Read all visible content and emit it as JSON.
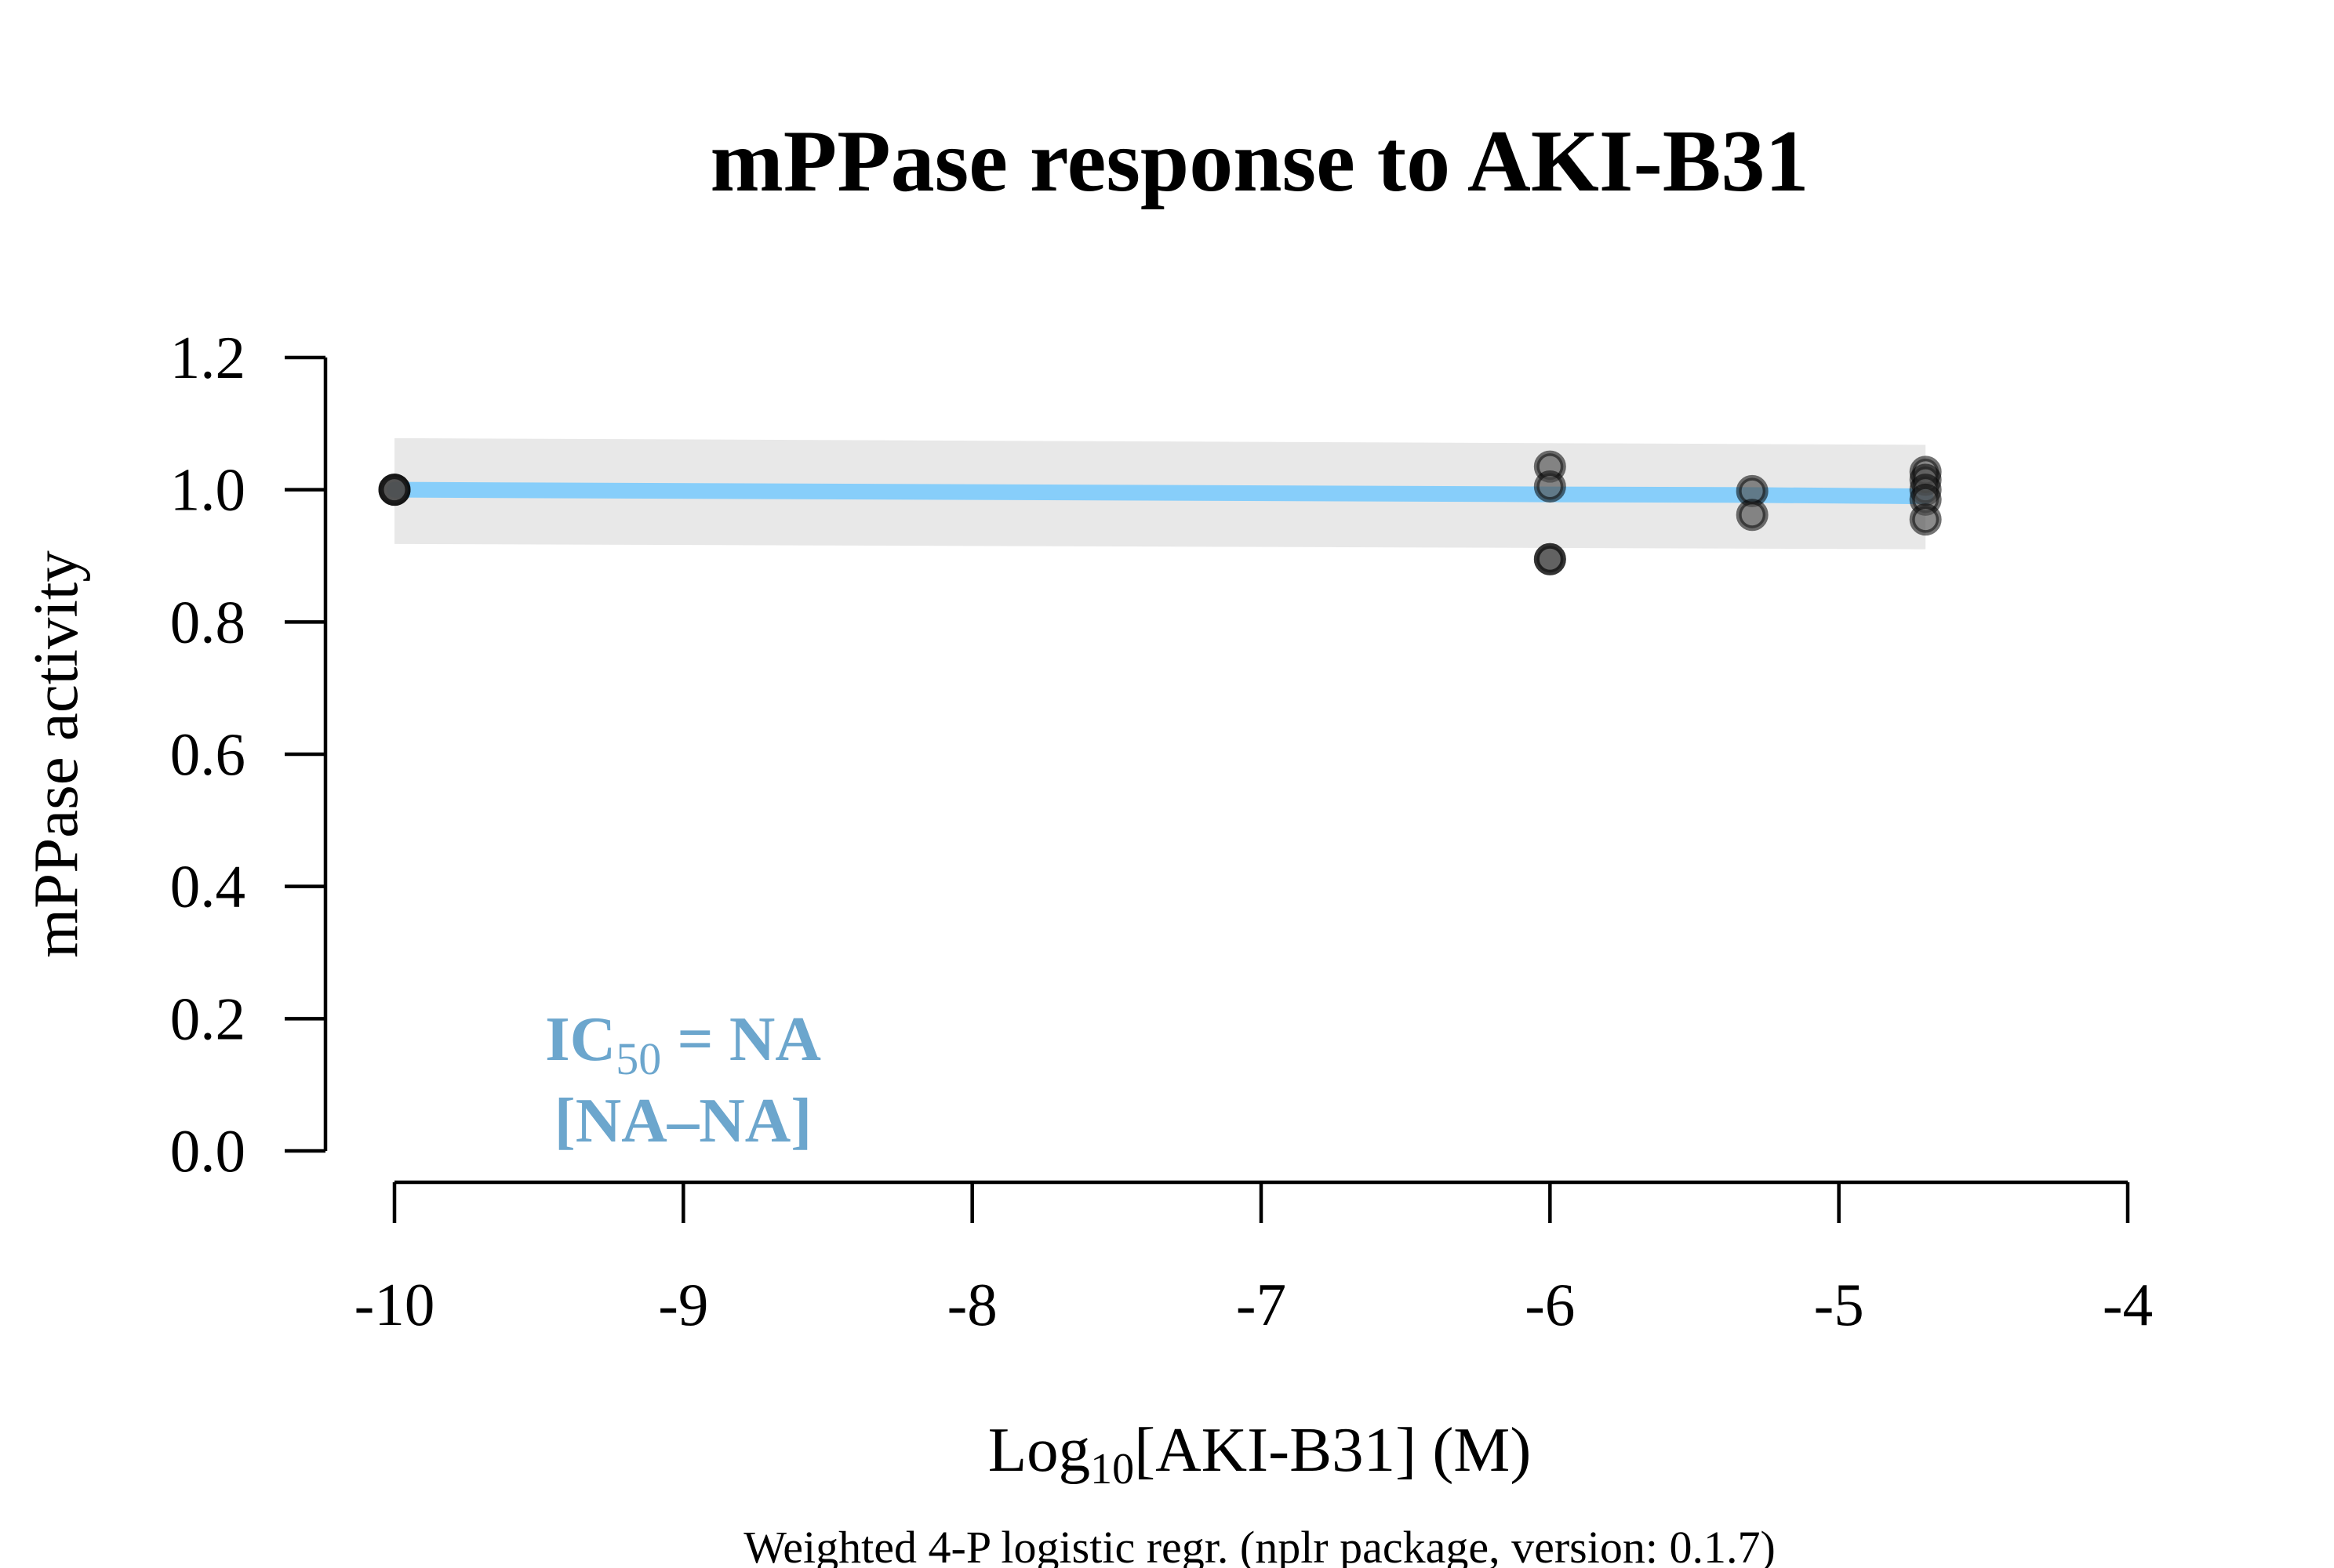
{
  "chart_data": {
    "type": "scatter",
    "title": "mPPase response to AKI-B31",
    "xlabel": {
      "main": "Log",
      "sub": "10",
      "rest": "[AKI-B31] (M)"
    },
    "ylabel": "mPPase activity",
    "footnote": "Weighted 4-P logistic regr. (nplr package, version: 0.1.7)",
    "xlim": [
      -10,
      -4
    ],
    "ylim": [
      0,
      1.2
    ],
    "x_ticks": [
      -10,
      -9,
      -8,
      -7,
      -6,
      -5,
      -4
    ],
    "y_ticks": [
      0.0,
      0.2,
      0.4,
      0.6,
      0.8,
      1.0,
      1.2
    ],
    "points": [
      {
        "x": -10,
        "y": 1.0
      },
      {
        "x": -10,
        "y": 1.0
      },
      {
        "x": -10,
        "y": 1.0
      },
      {
        "x": -6,
        "y": 1.035
      },
      {
        "x": -6,
        "y": 1.005
      },
      {
        "x": -6,
        "y": 0.895
      },
      {
        "x": -6,
        "y": 0.895
      },
      {
        "x": -5.3,
        "y": 0.998
      },
      {
        "x": -5.3,
        "y": 0.962
      },
      {
        "x": -4.7,
        "y": 1.027
      },
      {
        "x": -4.7,
        "y": 1.015
      },
      {
        "x": -4.7,
        "y": 1.0
      },
      {
        "x": -4.7,
        "y": 0.985
      },
      {
        "x": -4.7,
        "y": 0.955
      }
    ],
    "fit_curve": {
      "x": [
        -10,
        -6,
        -5.3,
        -4.7
      ],
      "y": [
        1.0,
        0.993,
        0.992,
        0.99
      ]
    },
    "confidence_band": {
      "x": [
        -10,
        -4.7
      ],
      "upper": [
        1.078,
        1.068
      ],
      "lower": [
        0.918,
        0.91
      ]
    },
    "annotation": {
      "ic50_label": "IC",
      "ic50_sub": "50",
      "ic50_value": " = NA",
      "interval": "[NA–NA]"
    },
    "colors": {
      "curve": "#87cefa",
      "band": "#e8e8e8",
      "annotation": "#6ca6cd",
      "point_fill": "#4d4d4d",
      "point_stroke": "#000000"
    },
    "grid": false,
    "legend": "none"
  }
}
